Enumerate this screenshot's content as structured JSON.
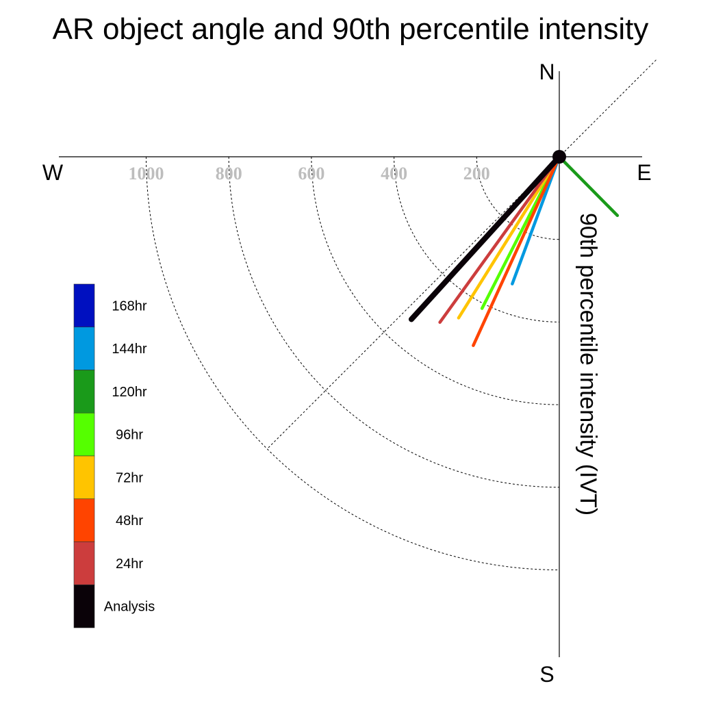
{
  "chart_data": {
    "type": "polar-vector",
    "title": "AR object angle and 90th percentile intensity",
    "axis_label": "90th percentile intensity (IVT)",
    "compass": {
      "north": "N",
      "south": "S",
      "east": "E",
      "west": "W"
    },
    "radial_ticks": [
      200,
      400,
      600,
      800,
      1000
    ],
    "radial_tick_labels": [
      "200",
      "400",
      "600",
      "800",
      "1000"
    ],
    "rlim": [
      0,
      1200
    ],
    "grid": true,
    "legend_position": "left",
    "series": [
      {
        "name": "168hr",
        "color": "#0010c0",
        "angle_deg": null,
        "intensity": null
      },
      {
        "name": "144hr",
        "color": "#0099e0",
        "angle_deg": 200.3,
        "intensity": 328
      },
      {
        "name": "120hr",
        "color": "#1a9a1a",
        "angle_deg": 135.3,
        "intensity": 200
      },
      {
        "name": "96hr",
        "color": "#55ff00",
        "angle_deg": 207.0,
        "intensity": 412
      },
      {
        "name": "72hr",
        "color": "#ffc400",
        "angle_deg": 212.0,
        "intensity": 460
      },
      {
        "name": "48hr",
        "color": "#ff4400",
        "angle_deg": 204.5,
        "intensity": 502
      },
      {
        "name": "24hr",
        "color": "#cc3d3d",
        "angle_deg": 215.8,
        "intensity": 494
      },
      {
        "name": "Analysis",
        "color": "#0a0208",
        "angle_deg": 222.3,
        "intensity": 532
      }
    ]
  }
}
